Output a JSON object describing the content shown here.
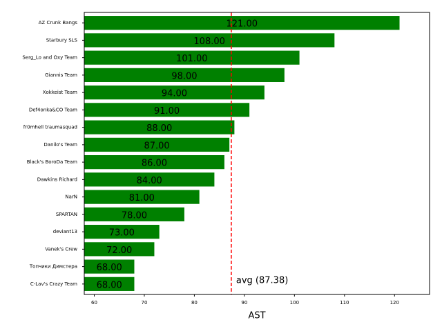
{
  "chart_data": {
    "type": "barh",
    "xlabel": "AST",
    "categories": [
      "AZ Crunk Bangs",
      "Starbury SLS",
      "Serg_Lo and Oxy Team",
      "Giannis Team",
      "Xokkeist Team",
      "Def4onka&CO Team",
      "fr0mhell traumasquad",
      "Danilo's Team",
      "Black's BoroDa Team",
      "Dawkins Richard",
      "NarN",
      "SPARTAN",
      "deviant13",
      "Vanek's Crew",
      "Топчики Димстера",
      "C-Lav's Crazy Team"
    ],
    "values": [
      121,
      108,
      101,
      98,
      94,
      91,
      88,
      87,
      86,
      84,
      81,
      78,
      73,
      72,
      68,
      68
    ],
    "value_labels": [
      "121.00",
      "108.00",
      "101.00",
      "98.00",
      "94.00",
      "91.00",
      "88.00",
      "87.00",
      "86.00",
      "84.00",
      "81.00",
      "78.00",
      "73.00",
      "72.00",
      "68.00",
      "68.00"
    ],
    "color": "#008000",
    "xlim": [
      58,
      127
    ],
    "xticks": [
      60,
      70,
      80,
      90,
      100,
      110,
      120
    ],
    "avg": 87.38,
    "avg_label": "avg (87.38)",
    "avg_color": "#ff0000"
  }
}
